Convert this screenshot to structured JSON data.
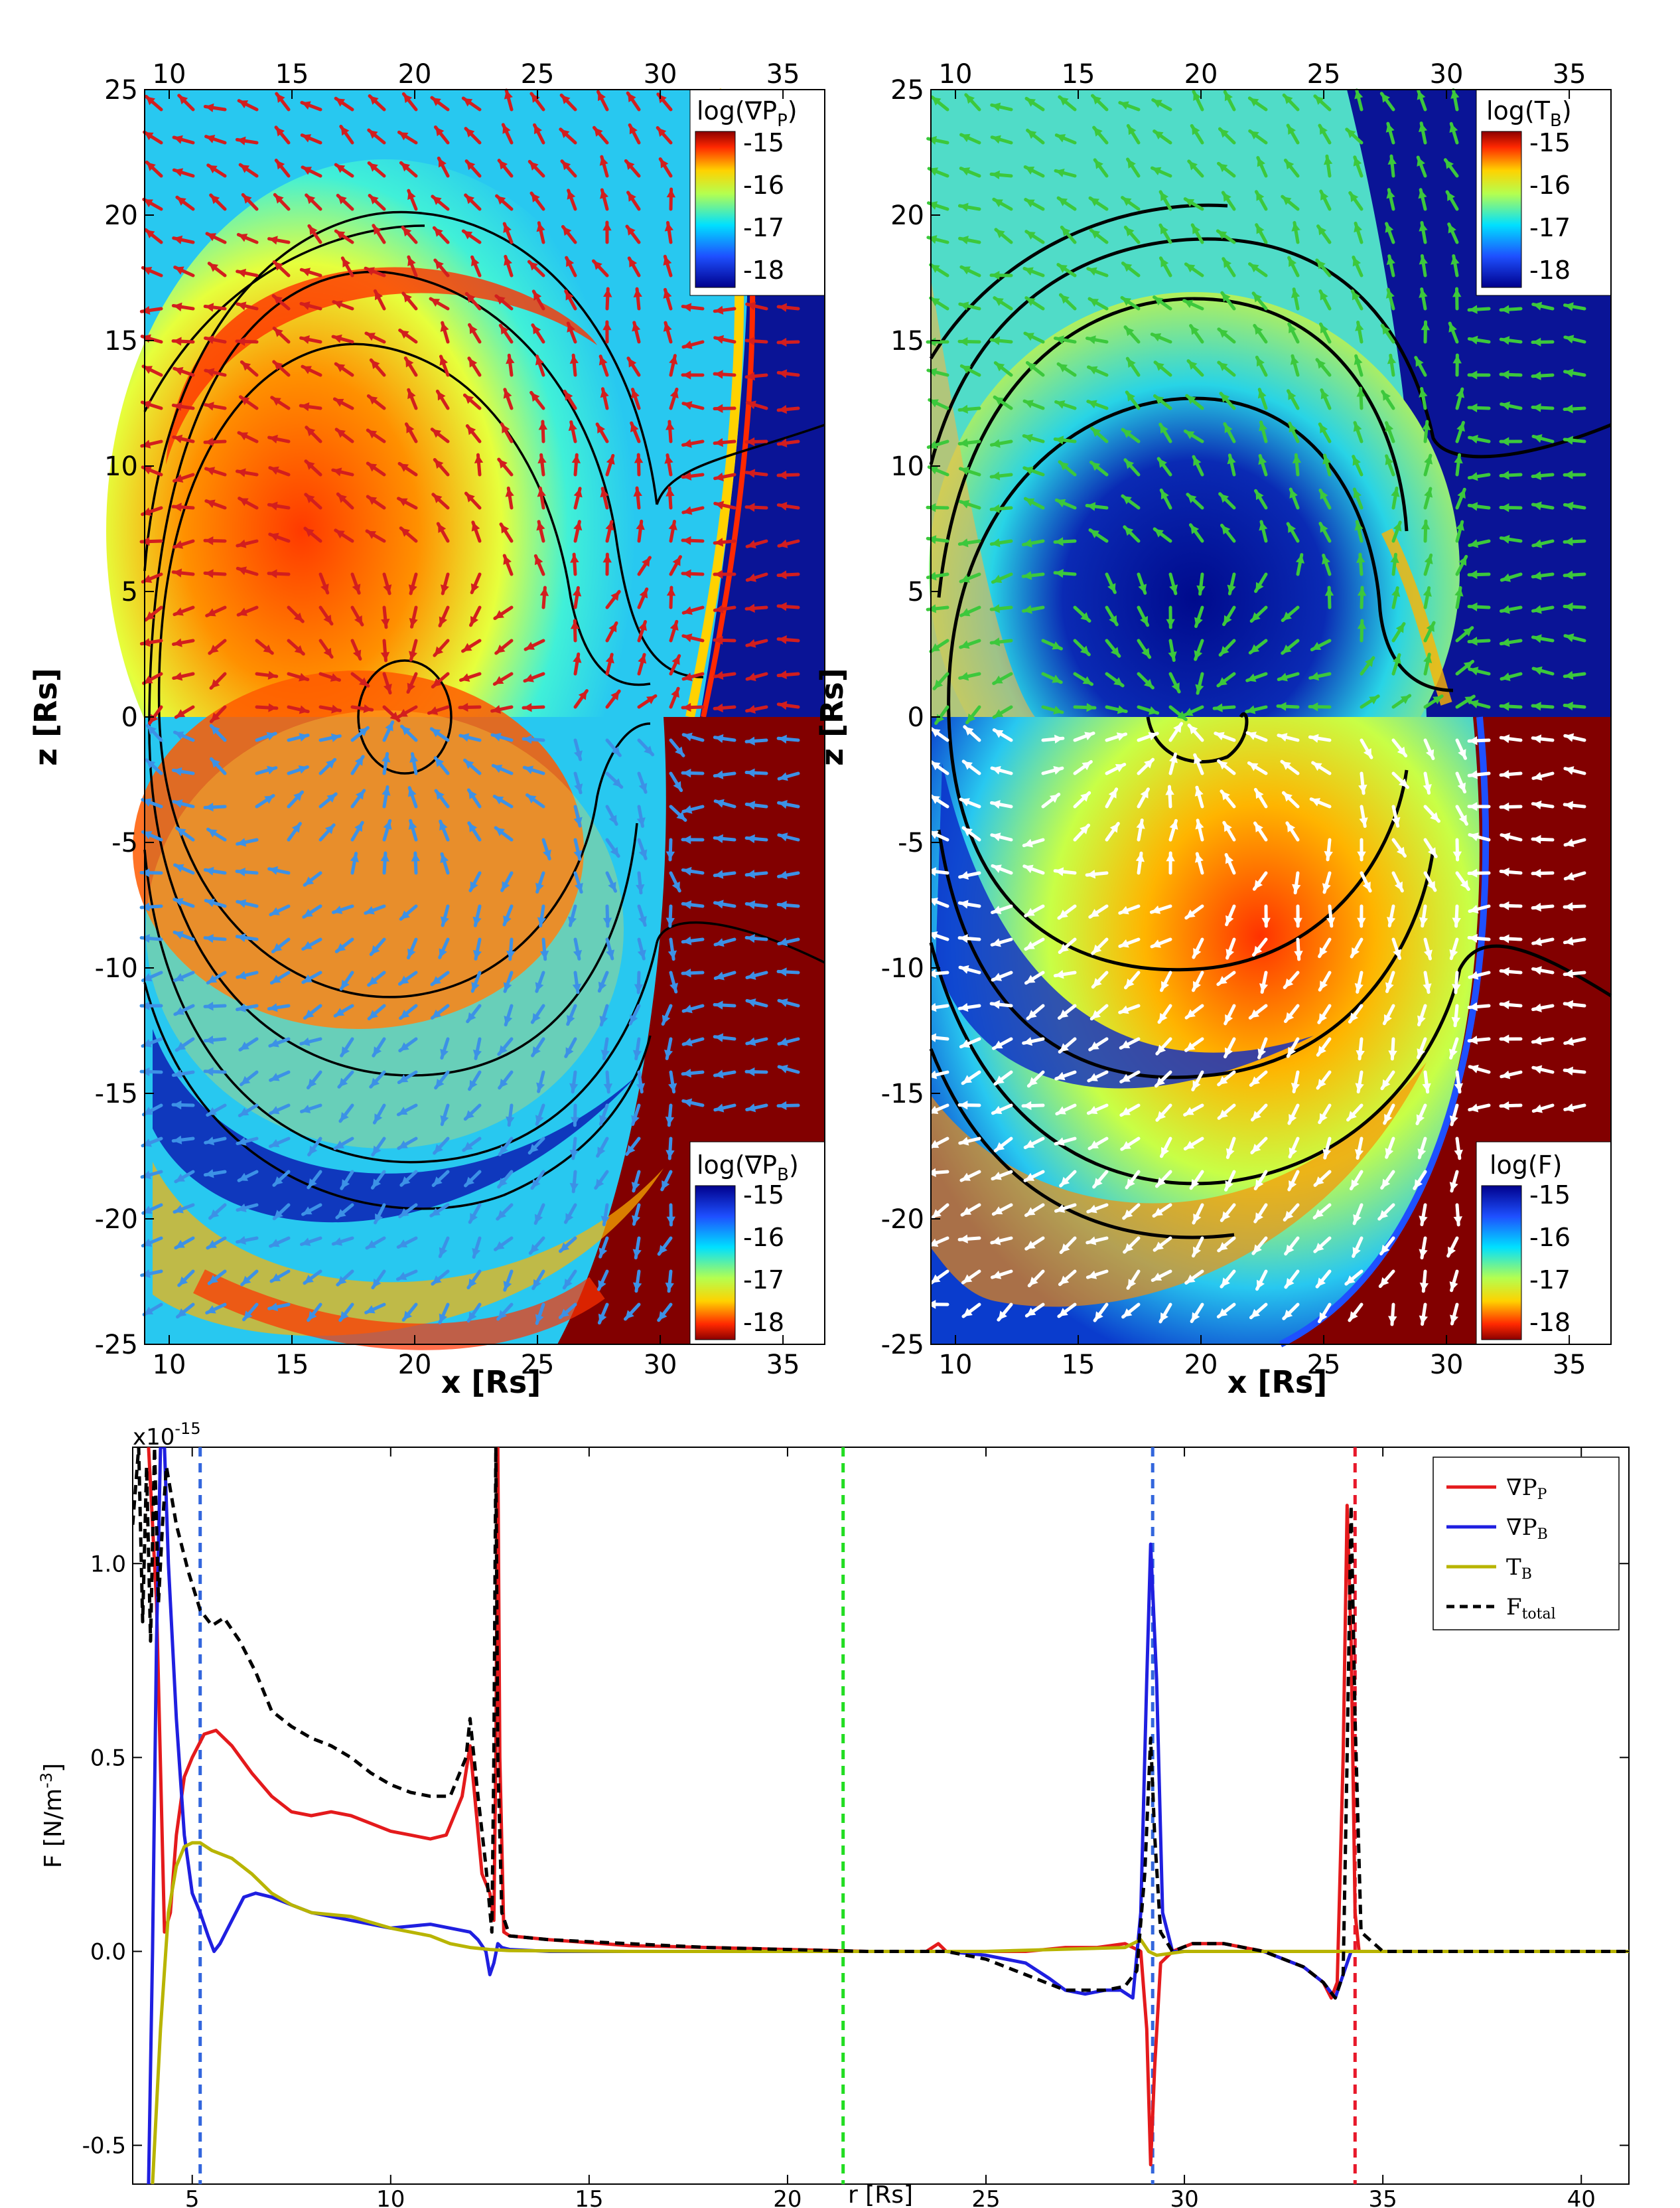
{
  "colors": {
    "red": "#e41a1c",
    "blue": "#1f1fe0",
    "olive": "#b8b400",
    "black": "#000000",
    "vline_blue": "#3366dd",
    "vline_green": "#22dd22",
    "vline_red": "#e8182a",
    "arrow_red": "#d21e1e",
    "arrow_blue": "#3c91e6",
    "arrow_green": "#3cc83c",
    "arrow_white": "#ffffff",
    "background_navy": "#000a8c",
    "background_maroon": "#820000"
  },
  "maps": {
    "x_range": [
      9,
      36.7
    ],
    "z_range": [
      -25,
      25
    ],
    "x_ticks": [
      10,
      15,
      20,
      25,
      30,
      35
    ],
    "x_tick_labels": [
      "10",
      "15",
      "20",
      "25",
      "30",
      "35"
    ],
    "z_ticks": [
      25,
      20,
      15,
      10,
      5,
      0,
      -5,
      -10,
      -15,
      -20,
      -25
    ],
    "z_tick_labels": [
      "25",
      "20",
      "15",
      "10",
      "5",
      "0",
      "-5",
      "-10",
      "-15",
      "-20",
      "-25"
    ],
    "xlabel": "x [Rs]",
    "ylabel": "z [Rs]",
    "panels": [
      {
        "name": "left",
        "top_label": "log(∇P",
        "top_label_sub": "P",
        "top_label_end": ")",
        "bottom_label": "log(∇P",
        "bottom_label_sub": "B",
        "bottom_label_end": ")",
        "top_arrow_color": "arrow_red",
        "bottom_arrow_color": "arrow_blue"
      },
      {
        "name": "right",
        "top_label": "log(T",
        "top_label_sub": "B",
        "top_label_end": ")",
        "bottom_label": "log(F)",
        "bottom_label_sub": "",
        "bottom_label_end": "",
        "top_arrow_color": "arrow_green",
        "bottom_arrow_color": "arrow_white"
      }
    ],
    "colorbar_ticks": [
      "-15",
      "-16",
      "-17",
      "-18"
    ]
  },
  "chart_data": {
    "type": "line",
    "ylabel": "F [N/m",
    "ylabel_sup": "-3",
    "ylabel_end": "]",
    "xlabel": "r [Rs]",
    "scale_label": "x10",
    "scale_exp": "-15",
    "xlim": [
      3.5,
      41.2
    ],
    "ylim": [
      -0.6,
      1.3
    ],
    "x_ticks": [
      5,
      10,
      15,
      20,
      25,
      30,
      35,
      40
    ],
    "x_tick_labels": [
      "5",
      "10",
      "15",
      "20",
      "25",
      "30",
      "35",
      "40"
    ],
    "y_ticks": [
      -0.5,
      0.0,
      0.5,
      1.0
    ],
    "y_tick_labels": [
      "-0.5",
      "0.0",
      "0.5",
      "1.0"
    ],
    "vlines": [
      {
        "x": 5.2,
        "color": "vline_blue"
      },
      {
        "x": 21.4,
        "color": "vline_green"
      },
      {
        "x": 29.2,
        "color": "vline_blue"
      },
      {
        "x": 34.3,
        "color": "vline_red"
      }
    ],
    "series": [
      {
        "name": "grad-pp",
        "label": "∇P",
        "label_sub": "P",
        "color": "red",
        "dash": false,
        "x": [
          3.9,
          4.1,
          4.3,
          4.45,
          4.6,
          4.8,
          5.0,
          5.3,
          5.6,
          6.0,
          6.5,
          7.0,
          7.5,
          8.0,
          8.5,
          9.0,
          9.5,
          10.0,
          10.5,
          11.0,
          11.4,
          11.8,
          12.0,
          12.3,
          12.5,
          12.6,
          12.65,
          12.7,
          12.75,
          12.85,
          13.0,
          14,
          16,
          18,
          20,
          22,
          23.5,
          23.8,
          24.0,
          25,
          26,
          27,
          27.8,
          28.5,
          28.9,
          29.05,
          29.15,
          29.25,
          29.4,
          29.7,
          30.2,
          31.0,
          32.0,
          33.0,
          33.5,
          33.7,
          33.85,
          34.0,
          34.1,
          34.2,
          34.3,
          34.4,
          35,
          38,
          41.2
        ],
        "y": [
          1.3,
          0.9,
          0.05,
          0.1,
          0.3,
          0.45,
          0.5,
          0.56,
          0.57,
          0.53,
          0.46,
          0.4,
          0.36,
          0.35,
          0.36,
          0.35,
          0.33,
          0.31,
          0.3,
          0.29,
          0.3,
          0.4,
          0.53,
          0.2,
          0.15,
          0.08,
          0.5,
          1.3,
          0.5,
          0.05,
          0.04,
          0.03,
          0.015,
          0.01,
          0.005,
          0.0,
          0.0,
          0.02,
          0.0,
          0.0,
          0.0,
          0.01,
          0.01,
          0.02,
          0.0,
          -0.2,
          -0.55,
          -0.3,
          -0.03,
          0.0,
          0.02,
          0.02,
          0.0,
          -0.04,
          -0.08,
          -0.12,
          -0.08,
          0.5,
          1.15,
          0.8,
          0.1,
          0.0,
          0.0,
          0.0,
          0.0
        ]
      },
      {
        "name": "grad-pb",
        "label": "∇P",
        "label_sub": "B",
        "color": "blue",
        "dash": false,
        "x": [
          3.9,
          4.0,
          4.1,
          4.2,
          4.3,
          4.4,
          4.6,
          4.8,
          5.0,
          5.2,
          5.4,
          5.55,
          5.7,
          6.0,
          6.3,
          6.6,
          7.0,
          7.5,
          8.0,
          8.5,
          9.0,
          9.5,
          10.0,
          10.5,
          11.0,
          11.5,
          12.0,
          12.2,
          12.4,
          12.5,
          12.6,
          12.7,
          12.8,
          13.0,
          14,
          16,
          20,
          23,
          24,
          25,
          26,
          26.6,
          27,
          27.5,
          28,
          28.4,
          28.7,
          28.9,
          29.05,
          29.15,
          29.3,
          29.45,
          29.7,
          30.2,
          31,
          32,
          33,
          33.5,
          33.8,
          34.0,
          34.2,
          34.4,
          35,
          41.2
        ],
        "y": [
          -0.6,
          0.0,
          0.8,
          1.3,
          1.3,
          1.0,
          0.6,
          0.3,
          0.15,
          0.1,
          0.04,
          0.0,
          0.02,
          0.08,
          0.14,
          0.15,
          0.14,
          0.12,
          0.1,
          0.09,
          0.08,
          0.07,
          0.06,
          0.065,
          0.07,
          0.06,
          0.05,
          0.03,
          0.0,
          -0.06,
          -0.03,
          0.02,
          0.01,
          0.005,
          0.0,
          0.0,
          0.0,
          0.0,
          0.0,
          -0.01,
          -0.03,
          -0.07,
          -0.1,
          -0.11,
          -0.1,
          -0.1,
          -0.12,
          0.1,
          0.7,
          1.05,
          0.7,
          0.1,
          0.0,
          0.0,
          0.0,
          0.0,
          -0.04,
          -0.08,
          -0.12,
          -0.06,
          0.0,
          0.0,
          0.0,
          0.0
        ]
      },
      {
        "name": "tension-b",
        "label": "T",
        "label_sub": "B",
        "color": "olive",
        "dash": false,
        "x": [
          4.0,
          4.2,
          4.4,
          4.6,
          4.8,
          5.0,
          5.2,
          5.5,
          6.0,
          6.5,
          7.0,
          7.5,
          8.0,
          9.0,
          10.0,
          11.0,
          11.5,
          12.0,
          12.5,
          13.0,
          16,
          20,
          25,
          28.5,
          28.9,
          29.1,
          29.3,
          30,
          41.2
        ],
        "y": [
          -0.6,
          -0.2,
          0.1,
          0.22,
          0.27,
          0.28,
          0.28,
          0.26,
          0.24,
          0.2,
          0.15,
          0.12,
          0.1,
          0.09,
          0.06,
          0.04,
          0.02,
          0.01,
          0.005,
          0.002,
          0.0,
          0.0,
          0.0,
          0.01,
          0.03,
          0.0,
          -0.01,
          0.0,
          0.0
        ]
      },
      {
        "name": "f-total",
        "label": "F",
        "label_sub": "total",
        "color": "black",
        "dash": true,
        "x": [
          3.5,
          3.65,
          3.75,
          3.85,
          3.95,
          4.05,
          4.15,
          4.25,
          4.35,
          4.6,
          4.9,
          5.2,
          5.5,
          5.8,
          6.2,
          6.6,
          7.0,
          7.5,
          8.0,
          8.5,
          9.0,
          9.5,
          10.0,
          10.5,
          11.0,
          11.5,
          11.9,
          12.0,
          12.2,
          12.4,
          12.55,
          12.6,
          12.65,
          12.7,
          12.8,
          13.0,
          14,
          16,
          18,
          20,
          22,
          24,
          25,
          26,
          27,
          28,
          28.5,
          28.8,
          29.0,
          29.15,
          29.25,
          29.4,
          29.7,
          30.2,
          31,
          32,
          33,
          33.5,
          33.8,
          34.0,
          34.1,
          34.2,
          34.3,
          34.45,
          35,
          41.2
        ],
        "y": [
          1.1,
          1.3,
          0.85,
          1.25,
          0.8,
          1.3,
          0.9,
          1.1,
          1.25,
          1.1,
          0.98,
          0.88,
          0.84,
          0.86,
          0.8,
          0.72,
          0.62,
          0.58,
          0.55,
          0.53,
          0.5,
          0.46,
          0.43,
          0.41,
          0.4,
          0.4,
          0.5,
          0.6,
          0.4,
          0.22,
          0.05,
          0.5,
          1.3,
          0.5,
          0.1,
          0.04,
          0.03,
          0.02,
          0.01,
          0.005,
          0.0,
          0.0,
          -0.02,
          -0.06,
          -0.1,
          -0.1,
          -0.09,
          -0.05,
          0.2,
          0.55,
          0.3,
          0.05,
          0.0,
          0.02,
          0.02,
          0.0,
          -0.04,
          -0.08,
          -0.12,
          -0.06,
          0.5,
          1.15,
          0.6,
          0.05,
          0.0,
          0.0
        ]
      }
    ]
  }
}
